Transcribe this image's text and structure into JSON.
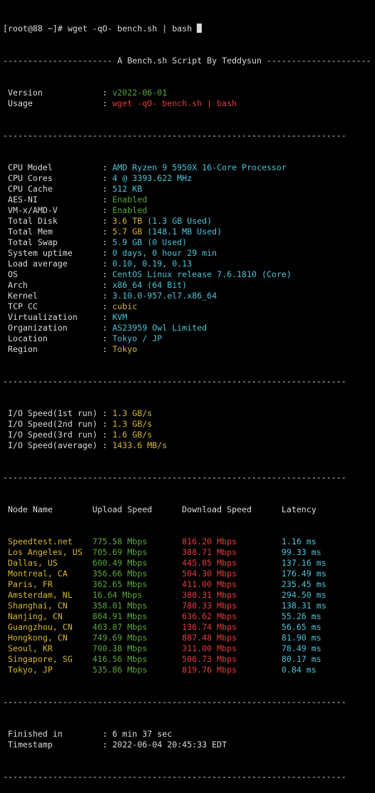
{
  "prompt": "[root@88 ~]# wget -qO- bench.sh | bash",
  "banner": "---------------------- A Bench.sh Script By Teddysun ---------------------",
  "separator": "---------------------------------------------------------------------",
  "header_info": [
    {
      "label": " Version            : ",
      "value": "v2022-06-01"
    },
    {
      "label": " Usage              : ",
      "value": "wget -qO- bench.sh | bash"
    }
  ],
  "system_info": [
    {
      "label": " CPU Model          : ",
      "value": "AMD Ryzen 9 5950X 16-Core Processor",
      "color": "c"
    },
    {
      "label": " CPU Cores          : ",
      "value": "4 @ 3393.622 MHz",
      "color": "c"
    },
    {
      "label": " CPU Cache          : ",
      "value": "512 KB",
      "color": "c"
    },
    {
      "label": " AES-NI             : ",
      "value": "Enabled",
      "color": "g"
    },
    {
      "label": " VM-x/AMD-V         : ",
      "value": "Enabled",
      "color": "g"
    },
    {
      "label": " Total Disk         : ",
      "value": "3.6 TB",
      "value2": " (1.3 GB Used)",
      "color": "y",
      "color2": "c"
    },
    {
      "label": " Total Mem          : ",
      "value": "5.7 GB",
      "value2": " (148.1 MB Used)",
      "color": "y",
      "color2": "c"
    },
    {
      "label": " Total Swap         : ",
      "value": "5.9 GB (0 Used)",
      "color": "c"
    },
    {
      "label": " System uptime      : ",
      "value": "0 days, 0 hour 29 min",
      "color": "c"
    },
    {
      "label": " Load average       : ",
      "value": "0.10, 0.19, 0.13",
      "color": "c"
    },
    {
      "label": " OS                 : ",
      "value": "CentOS Linux release 7.6.1810 (Core)",
      "color": "c"
    },
    {
      "label": " Arch               : ",
      "value": "x86_64 (64 Bit)",
      "color": "c"
    },
    {
      "label": " Kernel             : ",
      "value": "3.10.0-957.el7.x86_64",
      "color": "c"
    },
    {
      "label": " TCP CC             : ",
      "value": "cubic",
      "color": "y"
    },
    {
      "label": " Virtualization     : ",
      "value": "KVM",
      "color": "c"
    },
    {
      "label": " Organization       : ",
      "value": "AS23959 Owl Limited",
      "color": "c"
    },
    {
      "label": " Location           : ",
      "value": "Tokyo / JP",
      "color": "c"
    },
    {
      "label": " Region             : ",
      "value": "Tokyo",
      "color": "y"
    }
  ],
  "io": [
    {
      "label": " I/O Speed(1st run) : ",
      "value": "1.3 GB/s"
    },
    {
      "label": " I/O Speed(2nd run) : ",
      "value": "1.3 GB/s"
    },
    {
      "label": " I/O Speed(3rd run) : ",
      "value": "1.6 GB/s"
    },
    {
      "label": " I/O Speed(average) : ",
      "value": "1433.6 MB/s"
    }
  ],
  "speed_header": " Node Name        Upload Speed      Download Speed      Latency",
  "speed_rows": [
    {
      "node": " Speedtest.net    ",
      "up": "775.58 Mbps       ",
      "down": "816.20 Mbps         ",
      "lat": "1.16 ms",
      "node_color": "y"
    },
    {
      "node": " Los Angeles, US  ",
      "up": "705.69 Mbps       ",
      "down": "388.71 Mbps         ",
      "lat": "99.33 ms"
    },
    {
      "node": " Dallas, US       ",
      "up": "600.49 Mbps       ",
      "down": "445.05 Mbps         ",
      "lat": "137.16 ms"
    },
    {
      "node": " Montreal, CA     ",
      "up": "356.66 Mbps       ",
      "down": "504.30 Mbps         ",
      "lat": "176.49 ms"
    },
    {
      "node": " Paris, FR        ",
      "up": "362.65 Mbps       ",
      "down": "411.00 Mbps         ",
      "lat": "235.45 ms"
    },
    {
      "node": " Amsterdam, NL    ",
      "up": "16.64 Mbps        ",
      "down": "380.31 Mbps         ",
      "lat": "294.50 ms"
    },
    {
      "node": " Shanghai, CN     ",
      "up": "358.01 Mbps       ",
      "down": "780.33 Mbps         ",
      "lat": "138.31 ms"
    },
    {
      "node": " Nanjing, CN      ",
      "up": "864.91 Mbps       ",
      "down": "636.62 Mbps         ",
      "lat": "55.26 ms"
    },
    {
      "node": " Guangzhou, CN    ",
      "up": "463.87 Mbps       ",
      "down": "136.74 Mbps         ",
      "lat": "56.65 ms"
    },
    {
      "node": " Hongkong, CN     ",
      "up": "749.69 Mbps       ",
      "down": "887.48 Mbps         ",
      "lat": "81.90 ms"
    },
    {
      "node": " Seoul, KR        ",
      "up": "700.38 Mbps       ",
      "down": "311.00 Mbps         ",
      "lat": "78.49 ms"
    },
    {
      "node": " Singapore, SG    ",
      "up": "416.56 Mbps       ",
      "down": "506.73 Mbps         ",
      "lat": "80.17 ms"
    },
    {
      "node": " Tokyo, JP        ",
      "up": "535.86 Mbps       ",
      "down": "819.76 Mbps         ",
      "lat": "0.84 ms"
    }
  ],
  "footer": [
    {
      "label": " Finished in        : ",
      "value": "6 min 37 sec"
    },
    {
      "label": " Timestamp          : ",
      "value": "2022-06-04 20:45:33 EDT"
    }
  ],
  "colors": {
    "yellow": "#d7b830",
    "red": "#e23d3d",
    "green": "#5aa83c",
    "cyan": "#4ec3d6",
    "text": "#dcdcdc"
  }
}
